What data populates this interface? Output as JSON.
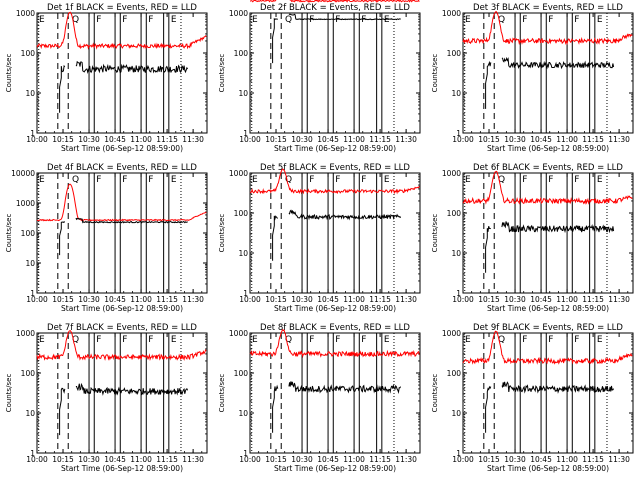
{
  "colors": {
    "events": "#000000",
    "lld": "#ff0000"
  },
  "chart_data": {
    "type": "line",
    "panels_grid": "3x3",
    "x_range_time": [
      "10:00",
      "11:38"
    ],
    "y_scale": "log",
    "ylim": [
      1,
      1000
    ],
    "xticks": [
      "10:00",
      "10:15",
      "10:30",
      "10:45",
      "11:00",
      "11:15",
      "11:30"
    ],
    "yticks": [
      "1",
      "10",
      "100",
      "1000"
    ],
    "y_ticks_panel_0": [
      "1",
      "10",
      "100",
      "1000"
    ],
    "y_ticks_panel_3": [
      "1",
      "10",
      "100",
      "1000",
      "10000"
    ],
    "xlabel": "Start Time (06-Sep-12 08:59:00)",
    "ylabel": "Counts/sec",
    "markers": [
      "E",
      "Q",
      "F",
      "F",
      "F",
      "E"
    ],
    "marker_times_min": [
      0,
      19,
      33,
      48,
      63,
      76
    ],
    "vlines_dashed_min": [
      12,
      18
    ],
    "vlines_solid_min": [
      30,
      33,
      45,
      48,
      60,
      63,
      73,
      76
    ],
    "vlines_dotted_min": [
      83
    ],
    "panels": [
      {
        "title": "Det 1f BLACK = Events, RED = LLD",
        "events": {
          "start_min": 13,
          "end_min": 87,
          "level": 40,
          "noise": 0.09
        },
        "lld": {
          "level": 150,
          "peak": 900,
          "peak_min": 19,
          "noise": 0.05,
          "tail": 260
        }
      },
      {
        "title": "Det 2f BLACK = Events, RED = LLD",
        "events": {
          "start_min": 13,
          "end_min": 87,
          "level": 700,
          "noise": 0.01
        },
        "lld": {
          "level": 2000,
          "peak": 4500,
          "peak_min": 19,
          "noise": 0.02,
          "tail": 2000
        }
      },
      {
        "title": "Det 3f BLACK = Events, RED = LLD",
        "events": {
          "start_min": 13,
          "end_min": 87,
          "level": 50,
          "noise": 0.07
        },
        "lld": {
          "level": 200,
          "peak": 900,
          "peak_min": 19,
          "noise": 0.06,
          "tail": 300
        }
      },
      {
        "title": "Det 4f BLACK = Events, RED = LLD",
        "events": {
          "start_min": 13,
          "end_min": 87,
          "level": 230,
          "noise": 0.02
        },
        "lld": {
          "level": 270,
          "peak": 4000,
          "peak_min": 19,
          "noise": 0.02,
          "tail": 500
        }
      },
      {
        "title": "Det 5f BLACK = Events, RED = LLD",
        "events": {
          "start_min": 13,
          "end_min": 87,
          "level": 80,
          "noise": 0.05
        },
        "lld": {
          "level": 350,
          "peak": 900,
          "peak_min": 19,
          "noise": 0.04,
          "tail": 450
        }
      },
      {
        "title": "Det 6f BLACK = Events, RED = LLD",
        "events": {
          "start_min": 13,
          "end_min": 87,
          "level": 40,
          "noise": 0.08
        },
        "lld": {
          "level": 200,
          "peak": 900,
          "peak_min": 19,
          "noise": 0.06,
          "tail": 250
        }
      },
      {
        "title": "Det 7f BLACK = Events, RED = LLD",
        "events": {
          "start_min": 13,
          "end_min": 87,
          "level": 35,
          "noise": 0.08
        },
        "lld": {
          "level": 250,
          "peak": 900,
          "peak_min": 19,
          "noise": 0.06,
          "tail": 350
        }
      },
      {
        "title": "Det 8f BLACK = Events, RED = LLD",
        "events": {
          "start_min": 13,
          "end_min": 87,
          "level": 40,
          "noise": 0.08
        },
        "lld": {
          "level": 300,
          "peak": 900,
          "peak_min": 19,
          "noise": 0.06,
          "tail": 300
        }
      },
      {
        "title": "Det 9f BLACK = Events, RED = LLD",
        "events": {
          "start_min": 13,
          "end_min": 87,
          "level": 40,
          "noise": 0.08
        },
        "lld": {
          "level": 200,
          "peak": 900,
          "peak_min": 19,
          "noise": 0.06,
          "tail": 300
        }
      }
    ]
  }
}
